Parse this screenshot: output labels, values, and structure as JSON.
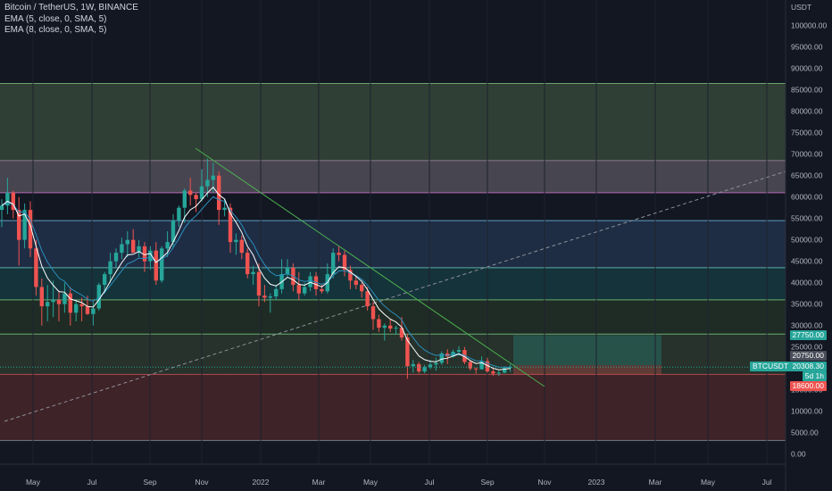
{
  "legend": {
    "title": "Bitcoin / TetherUS, 1W, BINANCE",
    "ema5": "EMA (5, close, 0, SMA, 5)",
    "ema8": "EMA (8, close, 0, SMA, 5)"
  },
  "currency": "USDT",
  "price_ticks": [
    "100000.00",
    "95000.00",
    "90000.00",
    "85000.00",
    "80000.00",
    "75000.00",
    "70000.00",
    "65000.00",
    "60000.00",
    "55000.00",
    "50000.00",
    "45000.00",
    "40000.00",
    "35000.00",
    "30000.00",
    "25000.00",
    "20000.00",
    "15000.00",
    "10000.00",
    "5000.00",
    "0.00"
  ],
  "time_ticks": [
    "May",
    "Jul",
    "Sep",
    "Nov",
    "2022",
    "Mar",
    "May",
    "Jul",
    "Sep",
    "Nov",
    "2023",
    "Mar",
    "May",
    "Jul"
  ],
  "price_tags": {
    "target": "27750.00",
    "entry": "20750.00",
    "current": "20308.30",
    "countdown": "5d 1h",
    "stop": "18600.00"
  },
  "symbol_tag": "BTCUSDT",
  "colors": {
    "up": "#26a69a",
    "down": "#ef5350",
    "background": "#131722",
    "ema5": "#ffffff",
    "ema8": "#2a8fbf",
    "trendline": "#4caf50"
  },
  "chart_data": {
    "type": "candlestick",
    "symbol": "Bitcoin / TetherUS",
    "interval": "1W",
    "exchange": "BINANCE",
    "ylim": [
      0,
      105000
    ],
    "candles": [
      [
        57000,
        59500,
        53000,
        58000
      ],
      [
        58000,
        64500,
        56000,
        61000
      ],
      [
        61000,
        61500,
        55000,
        57000
      ],
      [
        57000,
        60000,
        44000,
        50000
      ],
      [
        50000,
        58500,
        48000,
        57000
      ],
      [
        57000,
        59000,
        46000,
        48000
      ],
      [
        48000,
        50000,
        37000,
        39000
      ],
      [
        39000,
        41000,
        30000,
        34500
      ],
      [
        34500,
        39500,
        31000,
        35500
      ],
      [
        35500,
        40500,
        32000,
        36000
      ],
      [
        36000,
        38000,
        31000,
        35000
      ],
      [
        35000,
        40000,
        33000,
        37500
      ],
      [
        37500,
        39000,
        30000,
        33000
      ],
      [
        33000,
        36000,
        31000,
        35000
      ],
      [
        35000,
        36500,
        31000,
        34500
      ],
      [
        34500,
        37000,
        32500,
        32700
      ],
      [
        32700,
        35500,
        30000,
        34000
      ],
      [
        34000,
        40000,
        33500,
        39500
      ],
      [
        39500,
        42500,
        37500,
        42000
      ],
      [
        42000,
        47000,
        40000,
        45000
      ],
      [
        45000,
        48000,
        43500,
        47000
      ],
      [
        47000,
        50500,
        45500,
        49000
      ],
      [
        49000,
        52000,
        46000,
        50000
      ],
      [
        50000,
        52500,
        48000,
        47000
      ],
      [
        47000,
        50000,
        46000,
        48500
      ],
      [
        48500,
        49500,
        42500,
        45000
      ],
      [
        45000,
        48500,
        43000,
        47500
      ],
      [
        47500,
        49500,
        39500,
        40500
      ],
      [
        40500,
        48500,
        40000,
        48000
      ],
      [
        48000,
        52000,
        46000,
        49500
      ],
      [
        49500,
        56000,
        48000,
        54500
      ],
      [
        54500,
        58000,
        53000,
        57500
      ],
      [
        57500,
        62000,
        54000,
        61500
      ],
      [
        61500,
        64500,
        58000,
        60500
      ],
      [
        60500,
        61000,
        56500,
        59500
      ],
      [
        59500,
        66500,
        59000,
        62500
      ],
      [
        62500,
        69000,
        60000,
        64000
      ],
      [
        64000,
        68000,
        61000,
        65000
      ],
      [
        65000,
        66000,
        53500,
        57000
      ],
      [
        57000,
        59500,
        55500,
        57500
      ],
      [
        57500,
        58500,
        47000,
        49500
      ],
      [
        49500,
        51500,
        46500,
        50000
      ],
      [
        50000,
        51000,
        45500,
        47000
      ],
      [
        47000,
        48000,
        41000,
        42000
      ],
      [
        42000,
        44000,
        39500,
        42500
      ],
      [
        42500,
        44500,
        34500,
        37000
      ],
      [
        37000,
        39500,
        35500,
        36500
      ],
      [
        36500,
        37500,
        33000,
        36800
      ],
      [
        36800,
        39500,
        36000,
        38500
      ],
      [
        38500,
        45500,
        37500,
        42000
      ],
      [
        42000,
        45500,
        41500,
        43500
      ],
      [
        43500,
        44500,
        38000,
        39500
      ],
      [
        39500,
        42500,
        36000,
        37500
      ],
      [
        37500,
        40000,
        37000,
        39000
      ],
      [
        39000,
        42500,
        38000,
        41500
      ],
      [
        41500,
        42500,
        37000,
        38500
      ],
      [
        38500,
        39500,
        37500,
        38000
      ],
      [
        38000,
        44500,
        37500,
        42000
      ],
      [
        42000,
        48000,
        41000,
        47000
      ],
      [
        47000,
        48500,
        45000,
        46500
      ],
      [
        46500,
        47500,
        41500,
        43000
      ],
      [
        43000,
        44000,
        38500,
        40500
      ],
      [
        40500,
        41500,
        38500,
        39500
      ],
      [
        39500,
        40000,
        36500,
        38000
      ],
      [
        38000,
        39000,
        33500,
        34500
      ],
      [
        34500,
        35500,
        29000,
        31500
      ],
      [
        31500,
        32500,
        28500,
        29500
      ],
      [
        29500,
        30500,
        26500,
        30000
      ],
      [
        30000,
        31500,
        28500,
        29300
      ],
      [
        29300,
        30000,
        28000,
        29500
      ],
      [
        29500,
        32000,
        26500,
        27200
      ],
      [
        27200,
        28000,
        17600,
        20500
      ],
      [
        20500,
        22000,
        19000,
        21000
      ],
      [
        21000,
        21500,
        18800,
        19300
      ],
      [
        19300,
        20800,
        18900,
        20300
      ],
      [
        20300,
        22000,
        19800,
        20900
      ],
      [
        20900,
        22500,
        19500,
        21300
      ],
      [
        21300,
        24000,
        20800,
        23500
      ],
      [
        23500,
        24500,
        21000,
        22800
      ],
      [
        22800,
        24400,
        22500,
        23900
      ],
      [
        23900,
        25200,
        23000,
        24300
      ],
      [
        24300,
        25000,
        21000,
        21500
      ],
      [
        21500,
        21800,
        19500,
        20000
      ],
      [
        20000,
        20200,
        18800,
        19800
      ],
      [
        19800,
        22800,
        19700,
        21700
      ],
      [
        21700,
        22500,
        19000,
        19300
      ],
      [
        19300,
        20100,
        18300,
        18800
      ],
      [
        18800,
        19500,
        18200,
        19000
      ],
      [
        19000,
        20500,
        18900,
        20100
      ],
      [
        20100,
        21000,
        19200,
        20300
      ]
    ]
  }
}
